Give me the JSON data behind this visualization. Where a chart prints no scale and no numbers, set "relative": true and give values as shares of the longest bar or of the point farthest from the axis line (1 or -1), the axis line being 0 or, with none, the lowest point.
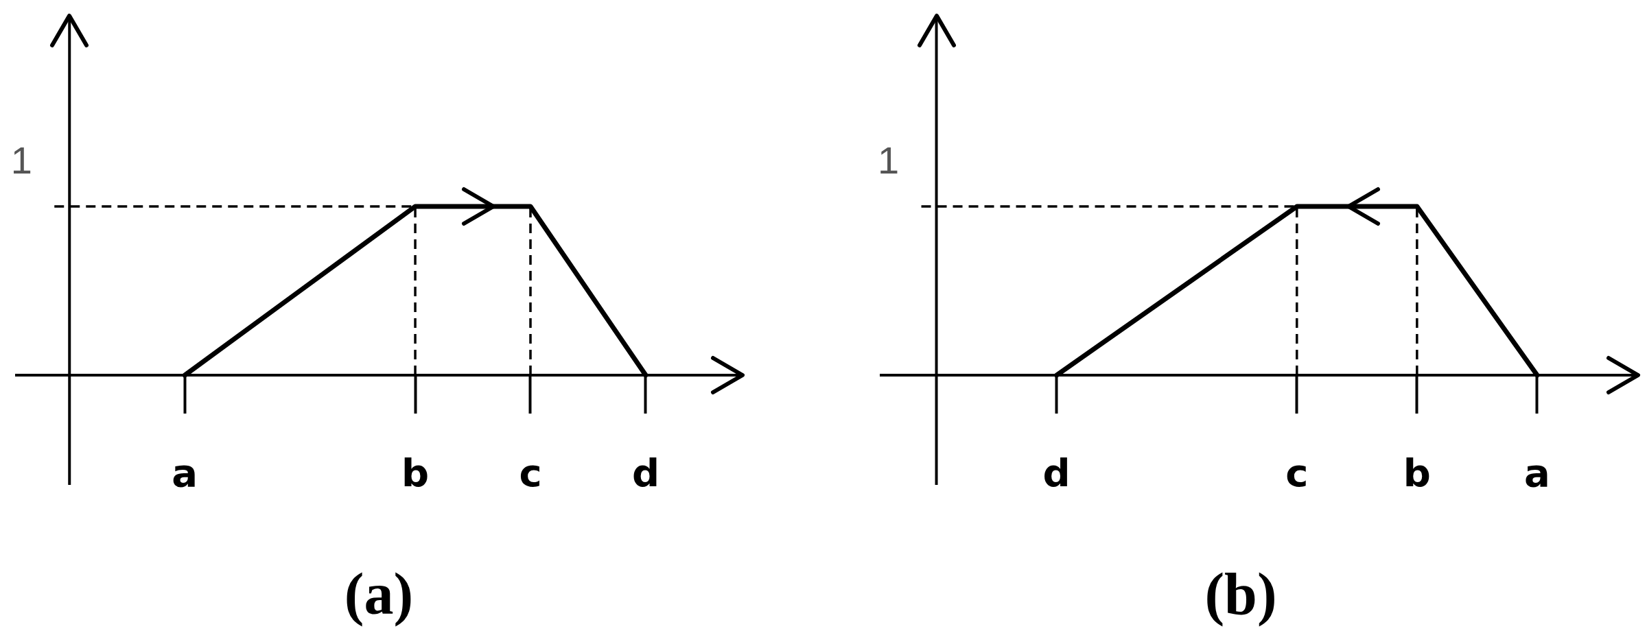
{
  "chart_data": [
    {
      "type": "line",
      "title": "(a)",
      "categories": [
        "a",
        null,
        "b",
        "c",
        "d"
      ],
      "values": [
        0,
        0.5,
        1,
        1,
        0
      ],
      "color": "#000000",
      "relative": true,
      "annotations": [
        "1"
      ],
      "ref_lines": [
        {
          "axis": "y",
          "value": 1,
          "line_style": "dashed"
        },
        {
          "axis": "x",
          "value": "b",
          "line_style": "dashed"
        },
        {
          "axis": "x",
          "value": "c",
          "line_style": "dashed"
        }
      ]
    },
    {
      "type": "line",
      "title": "(b)",
      "categories": [
        "d",
        null,
        "c",
        "b",
        "a"
      ],
      "values": [
        0,
        0.5,
        1,
        1,
        0
      ],
      "color": "#000000",
      "relative": true,
      "annotations": [
        "1"
      ],
      "ref_lines": [
        {
          "axis": "y",
          "value": 1,
          "line_style": "dashed"
        },
        {
          "axis": "x",
          "value": "c",
          "line_style": "dashed"
        },
        {
          "axis": "x",
          "value": "b",
          "line_style": "dashed"
        }
      ]
    }
  ]
}
